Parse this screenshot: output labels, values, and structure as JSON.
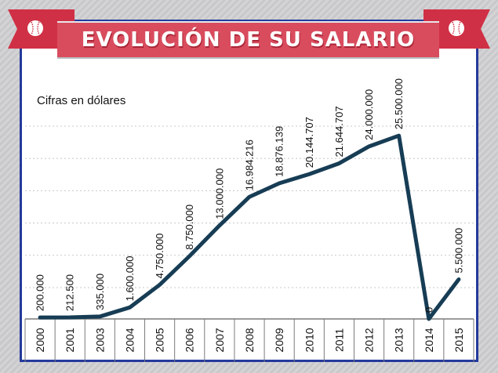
{
  "title": "EVOLUCIÓN DE SU SALARIO",
  "decor_icons": [
    "baseball-icon",
    "baseball-icon"
  ],
  "colors": {
    "line": "#173d55",
    "ribbon": "#d03045",
    "banner": "#d94c5e",
    "frame": "#243a9c",
    "grid": "#c8c8c8"
  },
  "chart_data": {
    "type": "line",
    "title": "EVOLUCIÓN DE SU SALARIO",
    "subtitle": "Cifras en dólares",
    "xlabel": "",
    "ylabel": "",
    "ylim": [
      0,
      29000000
    ],
    "grid": true,
    "categories": [
      "2000",
      "2001",
      "2003",
      "2004",
      "2005",
      "2006",
      "2007",
      "2008",
      "2009",
      "2010",
      "2011",
      "2012",
      "2013",
      "2014",
      "2015"
    ],
    "values": [
      200000,
      212500,
      335000,
      1600000,
      4750000,
      8750000,
      13000000,
      16984216,
      18876139,
      20144707,
      21644707,
      24000000,
      25500000,
      0,
      5500000
    ],
    "labels": [
      "200.000",
      "212.500",
      "335.000",
      "1.600.000",
      "4.750.000",
      "8.750.000",
      "13.000.000",
      "16.984.216",
      "18.876.139",
      "20.144.707",
      "21.644.707",
      "24.000.000",
      "25.500.000",
      "0",
      "5.500.000"
    ]
  }
}
